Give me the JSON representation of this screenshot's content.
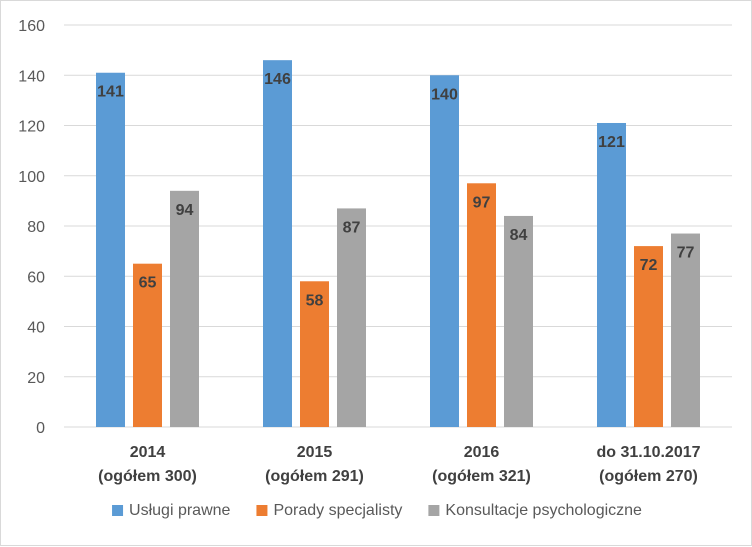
{
  "chart_data": {
    "type": "bar",
    "categories": [
      [
        "2014",
        "(ogółem 300)"
      ],
      [
        "2015",
        "(ogółem 291)"
      ],
      [
        "2016",
        "(ogółem 321)"
      ],
      [
        "do 31.10.2017",
        "(ogółem 270)"
      ]
    ],
    "series": [
      {
        "name": "Usługi prawne",
        "color": "#5b9bd5",
        "values": [
          141,
          146,
          140,
          121
        ]
      },
      {
        "name": "Porady specjalisty",
        "color": "#ed7d31",
        "values": [
          65,
          58,
          97,
          72
        ]
      },
      {
        "name": "Konsultacje psychologiczne",
        "color": "#a5a5a5",
        "values": [
          94,
          87,
          84,
          77
        ]
      }
    ],
    "ylim": [
      0,
      160
    ],
    "yticks": [
      0,
      20,
      40,
      60,
      80,
      100,
      120,
      140,
      160
    ],
    "grid": true,
    "data_labels": true,
    "legend_position": "bottom"
  }
}
